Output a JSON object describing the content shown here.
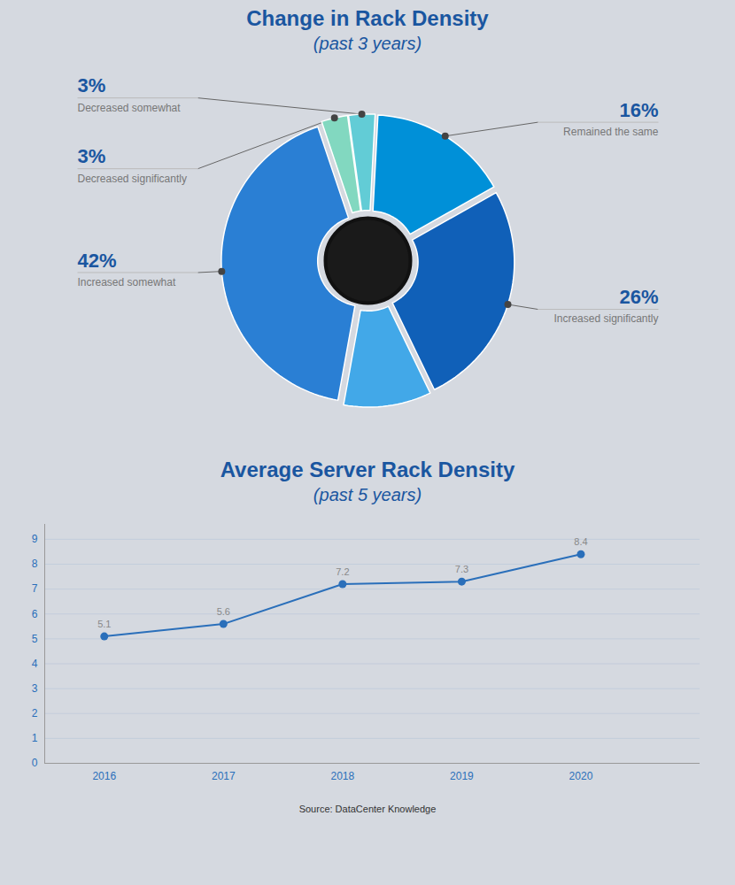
{
  "chart_data": [
    {
      "type": "pie",
      "title": "Change in Rack Density",
      "subtitle": "(past 3 years)",
      "categories": [
        "Decreased somewhat",
        "Decreased significantly",
        "Increased somewhat",
        null,
        "Increased significantly",
        "Remained the same"
      ],
      "values": [
        3,
        3,
        42,
        10,
        26,
        16
      ],
      "value_labels": [
        "3%",
        "3%",
        "42%",
        null,
        "26%",
        "16%"
      ],
      "colors": [
        "#62ccd6",
        "#82d8c0",
        "#2a7fd4",
        "#42a8e8",
        "#1060b8",
        "#0090d8"
      ],
      "data_labels": true
    },
    {
      "type": "line",
      "title": "Average Server Rack Density",
      "subtitle": "(past 5 years)",
      "x": [
        2016,
        2017,
        2018,
        2019,
        2020
      ],
      "values": [
        5.1,
        5.6,
        7.2,
        7.3,
        8.4
      ],
      "color": "#2a6fba",
      "marker": "circle",
      "xlim": [
        2015.5,
        2021.0
      ],
      "xticks": [
        2016,
        2017,
        2018,
        2019,
        2020
      ],
      "ylim": [
        0,
        9.6
      ],
      "yticks": [
        0,
        1,
        2,
        3,
        4,
        5,
        6,
        7,
        8,
        9
      ],
      "grid": true,
      "data_labels": true,
      "annotations": [
        "Source: DataCenter Knowledge"
      ]
    }
  ]
}
